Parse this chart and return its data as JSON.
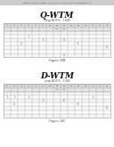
{
  "header_text": "Patent Application Publication   May 17, 2016   Sheet 134 of 198   US 2016/0135461 A1",
  "section1": {
    "title": "Q-WTM",
    "subtitle": "Loop BC(F3) - 10G5",
    "figure_label": "Figure 10B",
    "header_row": [
      "A1",
      "A2",
      "A3",
      "A4",
      "A5",
      "A6",
      "B1",
      "B2",
      "B3",
      "B4",
      "B5",
      "B6",
      "C1",
      "C2",
      "C3"
    ],
    "subheader_row": [
      "",
      "",
      "",
      "",
      "",
      "",
      "",
      "WTM",
      "WTM",
      "",
      "",
      "",
      "",
      "",
      ""
    ],
    "data_rows": [
      [
        "",
        "",
        "",
        "",
        "",
        "",
        "",
        "",
        "",
        "",
        "",
        "",
        "",
        "",
        ""
      ],
      [
        "",
        "",
        "",
        "1",
        "",
        "",
        "",
        "",
        "",
        "",
        "",
        "",
        "",
        "",
        ""
      ],
      [
        "",
        "",
        "",
        "",
        "",
        "1",
        "",
        "",
        "4",
        "",
        "",
        "",
        "",
        "",
        ""
      ],
      [
        "",
        "",
        "4",
        "",
        "",
        "",
        "",
        "",
        "",
        "",
        "6",
        "",
        "",
        "",
        ""
      ],
      [
        "",
        "",
        "",
        "",
        "",
        "",
        "",
        "",
        "",
        "",
        "",
        "",
        "",
        "",
        "4"
      ],
      [
        "",
        "",
        "",
        "",
        "",
        "",
        "",
        "",
        "",
        "",
        "",
        "",
        "",
        "",
        ""
      ],
      [
        "",
        "",
        "",
        "",
        "",
        "",
        "",
        "",
        "4",
        "",
        "",
        "",
        "",
        "",
        ""
      ]
    ]
  },
  "section2": {
    "title": "D-WTM",
    "subtitle": "Loop BC(F3) - 10G5",
    "figure_label": "Figure 10C",
    "header_row": [
      "A1",
      "A2",
      "A3",
      "A4",
      "A5",
      "A6",
      "B1",
      "B2",
      "B3",
      "B4",
      "B5",
      "B6",
      "C1",
      "C2",
      "C3"
    ],
    "subheader_row": [
      "",
      "",
      "",
      "",
      "",
      "",
      "",
      "WTM",
      "WTM",
      "",
      "",
      "",
      "",
      "",
      ""
    ],
    "data_rows": [
      [
        "",
        "",
        "",
        "",
        "",
        "",
        "",
        "",
        "",
        "",
        "",
        "",
        "",
        "",
        ""
      ],
      [
        "1",
        "1",
        "",
        "1",
        "",
        "",
        "",
        "",
        "",
        "",
        "",
        "",
        "1",
        "",
        ""
      ],
      [
        "",
        "",
        "",
        "",
        "",
        "1",
        "",
        "",
        "8",
        "",
        "",
        "",
        "",
        "",
        ""
      ],
      [
        "",
        "4",
        "",
        "",
        "",
        "",
        "",
        "",
        "",
        "",
        "6",
        "",
        "",
        "",
        ""
      ],
      [
        "",
        "",
        "",
        "",
        "",
        "",
        "",
        "",
        "",
        "",
        "",
        "",
        "",
        "",
        "4"
      ],
      [
        "",
        "",
        "",
        "",
        "",
        "",
        "",
        "",
        "",
        "",
        "",
        "",
        "",
        "",
        ""
      ],
      [
        "",
        "",
        "",
        "",
        "",
        "",
        "",
        "",
        "",
        "",
        "",
        "",
        "",
        "",
        ""
      ]
    ]
  },
  "bg_color": "#ffffff",
  "table_line_color": "#999999",
  "text_color": "#444444",
  "title_color": "#111111",
  "header_bg": "#d8d8d8",
  "subheader_bg": "#e8e8e8",
  "row_bg_even": "#f5f5f5",
  "row_bg_odd": "#ffffff"
}
